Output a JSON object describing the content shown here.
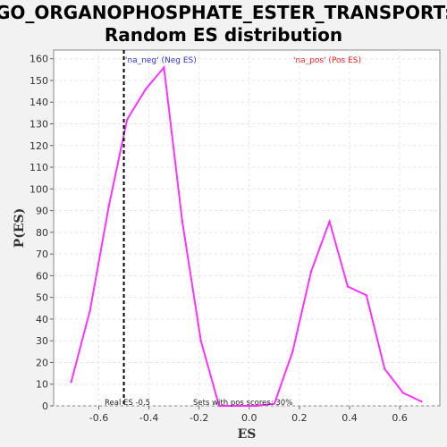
{
  "chart_data": {
    "type": "line",
    "title_line1": "GO_ORGANOPHOSPHATE_ESTER_TRANSPORT:",
    "title_line2": "Random ES distribution",
    "xlabel": "ES",
    "ylabel": "P(ES)",
    "xlim": [
      -0.78,
      0.76
    ],
    "ylim": [
      0,
      164
    ],
    "xticks": [
      -0.6,
      -0.4,
      -0.2,
      0.0,
      0.2,
      0.4,
      0.6
    ],
    "xtick_labels": [
      "-0.6",
      "-0.4",
      "-0.2",
      "0.0",
      "0.2",
      "0.4",
      "0.6"
    ],
    "yticks": [
      0,
      10,
      20,
      30,
      40,
      50,
      60,
      70,
      80,
      90,
      100,
      110,
      120,
      130,
      140,
      150,
      160
    ],
    "ytick_labels": [
      "0",
      "10",
      "20",
      "30",
      "40",
      "50",
      "60",
      "70",
      "80",
      "90",
      "100",
      "110",
      "120",
      "130",
      "140",
      "150",
      "160"
    ],
    "grid": true,
    "series": [
      {
        "color": "#ff33ff",
        "x": [
          -0.71,
          -0.635,
          -0.56,
          -0.487,
          -0.413,
          -0.34,
          -0.267,
          -0.193,
          -0.12,
          -0.047,
          0.027,
          0.1,
          0.173,
          0.247,
          0.32,
          0.393,
          0.467,
          0.54,
          0.613,
          0.687
        ],
        "y": [
          11,
          44,
          92,
          132,
          146,
          156,
          85,
          30,
          0,
          0,
          0,
          1,
          25,
          62,
          85,
          55,
          51,
          17,
          6,
          2
        ]
      }
    ],
    "real_es": -0.5,
    "legend": {
      "neg_label": "'na_neg' (Neg ES)",
      "neg_color": "#3333cc",
      "pos_label": "'na_pos' (Pos ES)",
      "pos_color": "#ee2222"
    },
    "annotations": {
      "real_es_text": "Real ES -0.5",
      "pos_scores_text": "Sets with pos scores: 30%"
    }
  }
}
